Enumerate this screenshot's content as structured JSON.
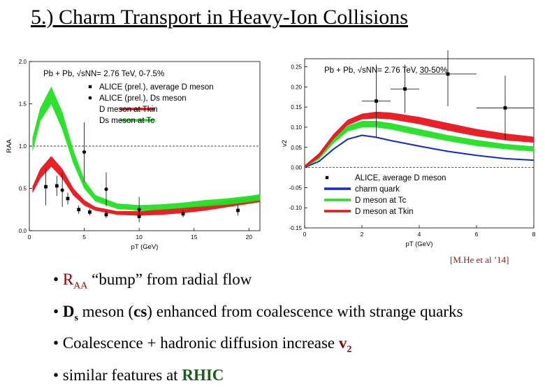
{
  "title": "5.) Charm Transport in Heavy-Ion Collisions",
  "citation": "[M.He et al ’14]",
  "bullets": [
    {
      "pre": "• ",
      "hl": "R",
      "sub": "AA",
      "post": " “bump” from radial flow"
    },
    {
      "pre": "• ",
      "hl": "D",
      "sub": "s",
      "mid": " meson (",
      "cs": "cs",
      "post": ") enhanced from coalescence with strange quarks"
    },
    {
      "pre": "• Coalescence + hadronic diffusion increase ",
      "hl": "v",
      "sub": "2",
      "post": ""
    },
    {
      "pre": "• similar features at ",
      "hl": "RHIC",
      "post": ""
    }
  ],
  "colors": {
    "red": "#e8141c",
    "green": "#22e022",
    "blue": "#1428c8",
    "black": "#000000",
    "highlight": "#8b0000",
    "rhic": "#1a5e1a"
  },
  "chart_data": [
    {
      "type": "line",
      "legend_title": "Pb + Pb, √sNN= 2.76 TeV, 0-7.5%",
      "xlabel": "pT (GeV)",
      "ylabel": "RAA",
      "xlim": [
        0,
        21
      ],
      "ylim": [
        0,
        2.0
      ],
      "xticks": [
        0,
        5,
        10,
        15,
        20
      ],
      "yticks": [
        0.0,
        0.5,
        1.0,
        1.5,
        2.0
      ],
      "reference_line": 1.0,
      "legend": [
        "ALICE (prel.), average D meson",
        "ALICE (prel.), Ds meson",
        "D meson at Tkin",
        "Ds meson at Tc"
      ],
      "legend_position": "top-right",
      "series": [
        {
          "name": "D meson at Tkin",
          "color": "red",
          "band": true,
          "x": [
            0.3,
            1.0,
            2.0,
            3.0,
            4.0,
            5.0,
            6.0,
            8.0,
            10.0,
            12.0,
            14.0,
            16.0,
            18.0,
            20.0,
            21.0
          ],
          "lo": [
            0.45,
            0.62,
            0.76,
            0.62,
            0.42,
            0.3,
            0.24,
            0.19,
            0.18,
            0.19,
            0.21,
            0.24,
            0.28,
            0.32,
            0.34
          ],
          "hi": [
            0.52,
            0.73,
            0.88,
            0.73,
            0.5,
            0.36,
            0.28,
            0.23,
            0.23,
            0.25,
            0.27,
            0.31,
            0.35,
            0.39,
            0.41
          ]
        },
        {
          "name": "Ds meson at Tc",
          "color": "green",
          "band": true,
          "x": [
            0.3,
            1.0,
            2.0,
            3.0,
            4.0,
            5.0,
            6.0,
            8.0,
            10.0,
            12.0,
            14.0,
            16.0,
            18.0,
            20.0,
            21.0
          ],
          "lo": [
            0.95,
            1.3,
            1.5,
            1.2,
            0.8,
            0.5,
            0.35,
            0.26,
            0.24,
            0.25,
            0.27,
            0.29,
            0.31,
            0.34,
            0.36
          ],
          "hi": [
            1.1,
            1.45,
            1.7,
            1.4,
            0.95,
            0.6,
            0.42,
            0.32,
            0.3,
            0.31,
            0.33,
            0.36,
            0.38,
            0.41,
            0.43
          ]
        }
      ],
      "points": [
        {
          "series": "ALICE (prel.), average D meson",
          "marker": "square",
          "x": [
            1.5,
            2.5,
            3.5,
            4.5,
            5.5,
            7.0,
            10.0,
            14.0,
            19.0
          ],
          "y": [
            0.52,
            0.53,
            0.38,
            0.25,
            0.22,
            0.19,
            0.17,
            0.2,
            0.24
          ],
          "err": [
            0.22,
            0.12,
            0.07,
            0.05,
            0.04,
            0.04,
            0.03,
            0.04,
            0.06
          ]
        },
        {
          "series": "ALICE (prel.), Ds meson",
          "marker": "circle",
          "x": [
            3.0,
            5.0,
            7.0,
            10.0
          ],
          "y": [
            0.48,
            0.93,
            0.49,
            0.25
          ],
          "err": [
            0.2,
            0.35,
            0.2,
            0.15
          ]
        }
      ]
    },
    {
      "type": "line",
      "legend_title": "Pb + Pb, √sNN= 2.76 TeV, 30-50%",
      "xlabel": "pT (GeV)",
      "ylabel": "v2",
      "xlim": [
        0,
        8
      ],
      "ylim": [
        -0.15,
        0.27
      ],
      "xticks": [
        0,
        2,
        4,
        6,
        8
      ],
      "yticks": [
        -0.15,
        -0.1,
        -0.05,
        0.0,
        0.05,
        0.1,
        0.15,
        0.2,
        0.25
      ],
      "legend": [
        "ALICE, average D meson",
        "charm quark",
        "D meson at Tc",
        "D meson at Tkin"
      ],
      "legend_position": "bottom-left",
      "series": [
        {
          "name": "charm quark",
          "color": "blue",
          "band": false,
          "x": [
            0.0,
            0.5,
            1.0,
            1.5,
            2.0,
            2.5,
            3.0,
            4.0,
            5.0,
            6.0,
            7.0,
            8.0
          ],
          "y": [
            0.0,
            0.015,
            0.045,
            0.07,
            0.08,
            0.075,
            0.067,
            0.053,
            0.04,
            0.03,
            0.022,
            0.018
          ]
        },
        {
          "name": "D meson at Tc",
          "color": "green",
          "band": true,
          "x": [
            0.0,
            0.5,
            1.0,
            1.5,
            2.0,
            2.5,
            3.0,
            4.0,
            5.0,
            6.0,
            7.0,
            8.0
          ],
          "lo": [
            0.0,
            0.02,
            0.06,
            0.09,
            0.1,
            0.1,
            0.095,
            0.08,
            0.066,
            0.054,
            0.046,
            0.04
          ],
          "hi": [
            0.005,
            0.03,
            0.072,
            0.103,
            0.115,
            0.115,
            0.11,
            0.095,
            0.08,
            0.068,
            0.058,
            0.052
          ]
        },
        {
          "name": "D meson at Tkin",
          "color": "red",
          "band": true,
          "x": [
            0.0,
            0.5,
            1.0,
            1.5,
            2.0,
            2.5,
            3.0,
            4.0,
            5.0,
            6.0,
            7.0,
            8.0
          ],
          "lo": [
            0.0,
            0.025,
            0.07,
            0.105,
            0.12,
            0.122,
            0.12,
            0.108,
            0.092,
            0.078,
            0.068,
            0.062
          ],
          "hi": [
            0.005,
            0.035,
            0.082,
            0.118,
            0.133,
            0.138,
            0.136,
            0.125,
            0.11,
            0.095,
            0.084,
            0.076
          ]
        }
      ],
      "points": [
        {
          "series": "ALICE, average D meson",
          "marker": "square",
          "x": [
            2.5,
            3.5,
            5.0,
            7.0
          ],
          "y": [
            0.165,
            0.195,
            0.232,
            0.148
          ],
          "xerr": [
            0.5,
            0.5,
            1.0,
            1.0
          ],
          "err": [
            0.09,
            0.06,
            0.08,
            0.08
          ]
        }
      ]
    }
  ]
}
